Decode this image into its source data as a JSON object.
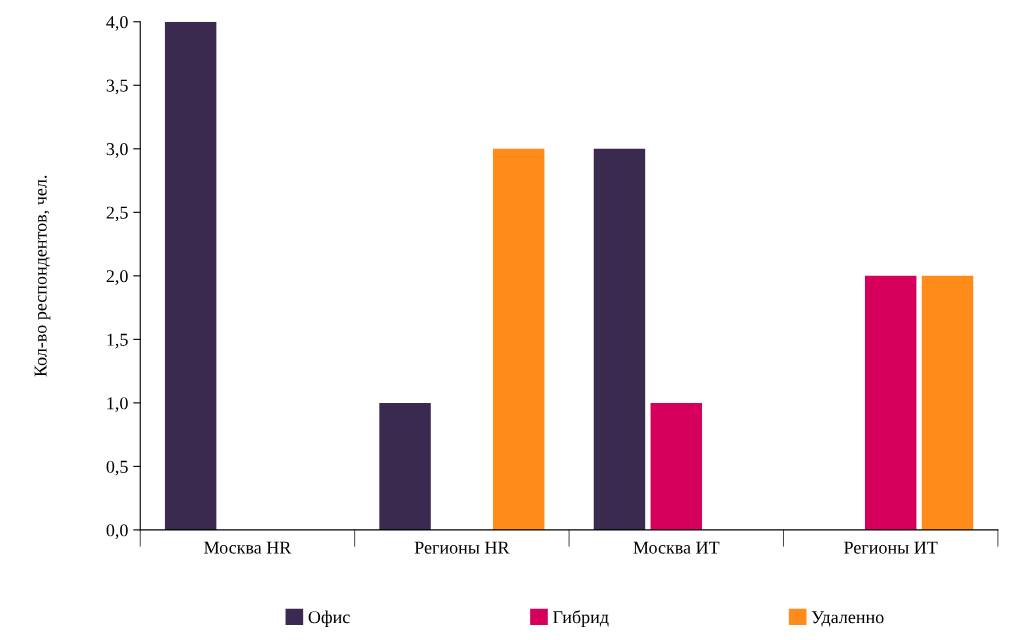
{
  "chart_data": {
    "type": "bar",
    "ylabel": "Кол-во респондентов, чел.",
    "categories": [
      "Москва HR",
      "Регионы HR",
      "Москва ИТ",
      "Регионы ИТ"
    ],
    "series": [
      {
        "name": "Офис",
        "color": "#3b2a50",
        "values": [
          4,
          1,
          3,
          0
        ]
      },
      {
        "name": "Гибрид",
        "color": "#d6005c",
        "values": [
          0,
          0,
          1,
          2
        ]
      },
      {
        "name": "Удаленно",
        "color": "#ff8c1a",
        "values": [
          0,
          3,
          0,
          2
        ]
      }
    ],
    "ylim": [
      0,
      4
    ],
    "yticks": [
      {
        "value": 0,
        "label": "0,0"
      },
      {
        "value": 0.5,
        "label": "0,5"
      },
      {
        "value": 1,
        "label": "1,0"
      },
      {
        "value": 1.5,
        "label": "1,5"
      },
      {
        "value": 2,
        "label": "2,0"
      },
      {
        "value": 2.5,
        "label": "2,5"
      },
      {
        "value": 3,
        "label": "3,0"
      },
      {
        "value": 3.5,
        "label": "3,5"
      },
      {
        "value": 4,
        "label": "4,0"
      }
    ],
    "grid": false,
    "legend": "bottom"
  }
}
